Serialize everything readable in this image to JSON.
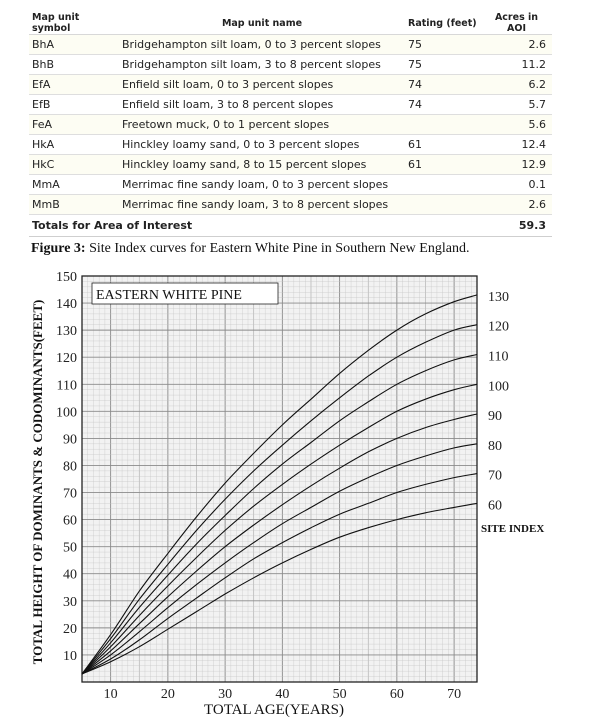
{
  "table": {
    "headers": {
      "symbol": "Map unit symbol",
      "name": "Map unit name",
      "rating": "Rating (feet)",
      "acres": "Acres in AOI"
    },
    "rows": [
      {
        "symbol": "BhA",
        "name": "Bridgehampton silt loam, 0 to 3 percent slopes",
        "rating": "75",
        "acres": "2.6"
      },
      {
        "symbol": "BhB",
        "name": "Bridgehampton silt loam, 3 to 8 percent slopes",
        "rating": "75",
        "acres": "11.2"
      },
      {
        "symbol": "EfA",
        "name": "Enfield silt loam, 0 to 3 percent slopes",
        "rating": "74",
        "acres": "6.2"
      },
      {
        "symbol": "EfB",
        "name": "Enfield silt loam, 3 to 8 percent slopes",
        "rating": "74",
        "acres": "5.7"
      },
      {
        "symbol": "FeA",
        "name": "Freetown muck, 0 to 1 percent slopes",
        "rating": "",
        "acres": "5.6"
      },
      {
        "symbol": "HkA",
        "name": "Hinckley loamy sand, 0 to 3 percent slopes",
        "rating": "61",
        "acres": "12.4"
      },
      {
        "symbol": "HkC",
        "name": "Hinckley loamy sand, 8 to 15 percent slopes",
        "rating": "61",
        "acres": "12.9"
      },
      {
        "symbol": "MmA",
        "name": "Merrimac fine sandy loam, 0 to 3 percent slopes",
        "rating": "",
        "acres": "0.1"
      },
      {
        "symbol": "MmB",
        "name": "Merrimac fine sandy loam, 3 to 8 percent slopes",
        "rating": "",
        "acres": "2.6"
      }
    ],
    "total": {
      "label": "Totals for Area of Interest",
      "acres": "59.3"
    }
  },
  "caption": {
    "label": "Figure 3:",
    "text": " Site Index curves for Eastern White Pine in Southern New England."
  },
  "chart_data": {
    "type": "line",
    "title": "EASTERN WHITE PINE",
    "xlabel": "TOTAL AGE(YEARS)",
    "ylabel": "TOTAL HEIGHT OF DOMINANTS & CODOMINANTS(FEET)",
    "series_label": "SITE INDEX",
    "xlim": [
      5,
      74
    ],
    "ylim": [
      0,
      150
    ],
    "xticks": [
      10,
      20,
      30,
      40,
      50,
      60,
      70
    ],
    "yticks": [
      10,
      20,
      30,
      40,
      50,
      60,
      70,
      80,
      90,
      100,
      110,
      120,
      130,
      140,
      150
    ],
    "grid": true,
    "x": [
      5,
      10,
      15,
      20,
      25,
      30,
      35,
      40,
      45,
      50,
      55,
      60,
      65,
      70,
      74
    ],
    "series": [
      {
        "name": "60",
        "values": [
          3,
          7.5,
          13,
          19.5,
          26,
          32.5,
          38.5,
          44,
          49,
          53.5,
          57,
          60,
          62.5,
          64.5,
          66
        ]
      },
      {
        "name": "70",
        "values": [
          3,
          8.5,
          15.5,
          23.5,
          31,
          38.5,
          45.5,
          51.5,
          57,
          62,
          66,
          70,
          73,
          75.5,
          77
        ]
      },
      {
        "name": "80",
        "values": [
          3,
          10,
          18.5,
          27.5,
          36,
          44,
          51.5,
          58.5,
          64.5,
          70.5,
          75.5,
          80,
          83.5,
          86.5,
          88
        ]
      },
      {
        "name": "90",
        "values": [
          3,
          11.5,
          21.5,
          31.5,
          41,
          50,
          58,
          65.5,
          72.5,
          79,
          85,
          90,
          94,
          97,
          99
        ]
      },
      {
        "name": "100",
        "values": [
          3,
          13,
          24.5,
          35.5,
          46,
          56,
          65,
          73,
          80.5,
          87.5,
          94,
          100,
          104.5,
          108,
          110
        ]
      },
      {
        "name": "110",
        "values": [
          3,
          14.5,
          27.5,
          39.5,
          51,
          61.5,
          71.5,
          80.5,
          88.5,
          96.5,
          103.5,
          110,
          115,
          119,
          121
        ]
      },
      {
        "name": "120",
        "values": [
          3,
          16,
          30.5,
          43.5,
          56,
          67.5,
          78,
          87.5,
          96.5,
          105,
          113,
          120,
          125.5,
          130,
          132
        ]
      },
      {
        "name": "130",
        "values": [
          3,
          17.5,
          33.5,
          47.5,
          61,
          73.5,
          84.5,
          95,
          104.5,
          114,
          122.5,
          130,
          136,
          140.5,
          143
        ]
      }
    ]
  }
}
